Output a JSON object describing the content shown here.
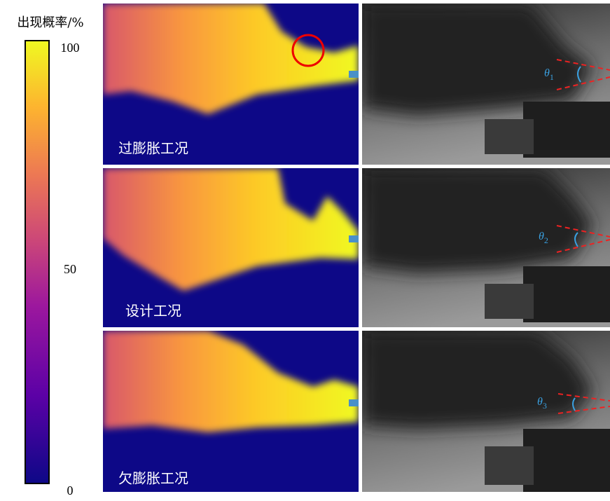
{
  "colorbar": {
    "title": "出现概率/%",
    "lim": [
      0,
      100
    ],
    "ticks": [
      0,
      50,
      100
    ]
  },
  "panels": [
    {
      "condition": "过膨胀工况",
      "angle": {
        "symbol": "θ",
        "subscript": "1"
      }
    },
    {
      "condition": "设计工况",
      "angle": {
        "symbol": "θ",
        "subscript": "2"
      }
    },
    {
      "condition": "欠膨胀工况",
      "angle": {
        "symbol": "θ",
        "subscript": "3"
      }
    }
  ]
}
